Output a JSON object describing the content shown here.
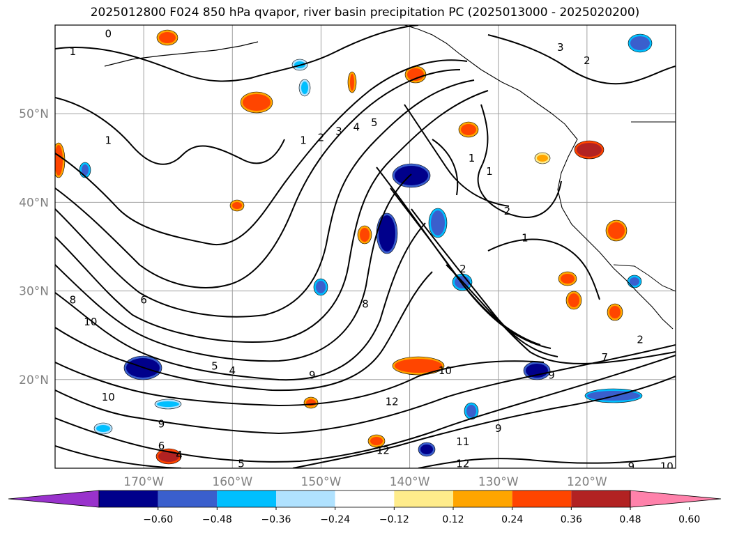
{
  "title": "2025012800 F024 850 hPa qvapor, river basin precipitation PC (2025013000 - 2025020200)",
  "map": {
    "lon_range": [
      -180,
      -110
    ],
    "lat_range": [
      10,
      60
    ],
    "lat_ticks": [
      {
        "value": 20,
        "label": "20°N"
      },
      {
        "value": 30,
        "label": "30°N"
      },
      {
        "value": 40,
        "label": "40°N"
      },
      {
        "value": 50,
        "label": "50°N"
      }
    ],
    "lon_ticks": [
      {
        "value": -170,
        "label": "170°W"
      },
      {
        "value": -160,
        "label": "160°W"
      },
      {
        "value": -150,
        "label": "150°W"
      },
      {
        "value": -140,
        "label": "140°W"
      },
      {
        "value": -130,
        "label": "130°W"
      },
      {
        "value": -120,
        "label": "120°W"
      }
    ],
    "grid": true,
    "contour_labels": [
      {
        "text": "0",
        "lon": -174,
        "lat": 59
      },
      {
        "text": "1",
        "lon": -178,
        "lat": 57
      },
      {
        "text": "1",
        "lon": -174,
        "lat": 47
      },
      {
        "text": "1",
        "lon": -152,
        "lat": 47
      },
      {
        "text": "2",
        "lon": -150,
        "lat": 47.3
      },
      {
        "text": "3",
        "lon": -148,
        "lat": 48
      },
      {
        "text": "4",
        "lon": -146,
        "lat": 48.5
      },
      {
        "text": "5",
        "lon": -144,
        "lat": 49
      },
      {
        "text": "3",
        "lon": -123,
        "lat": 57.5
      },
      {
        "text": "2",
        "lon": -120,
        "lat": 56
      },
      {
        "text": "1",
        "lon": -133,
        "lat": 45
      },
      {
        "text": "1",
        "lon": -131,
        "lat": 43.5
      },
      {
        "text": "2",
        "lon": -129,
        "lat": 39
      },
      {
        "text": "1",
        "lon": -127,
        "lat": 36
      },
      {
        "text": "2",
        "lon": -134,
        "lat": 32.5
      },
      {
        "text": "8",
        "lon": -178,
        "lat": 29
      },
      {
        "text": "6",
        "lon": -170,
        "lat": 29
      },
      {
        "text": "10",
        "lon": -176,
        "lat": 26.5
      },
      {
        "text": "8",
        "lon": -145,
        "lat": 28.5
      },
      {
        "text": "9",
        "lon": -151,
        "lat": 20.5
      },
      {
        "text": "5",
        "lon": -162,
        "lat": 21.5
      },
      {
        "text": "4",
        "lon": -160,
        "lat": 21
      },
      {
        "text": "10",
        "lon": -136,
        "lat": 21
      },
      {
        "text": "9",
        "lon": -124,
        "lat": 20.5
      },
      {
        "text": "10",
        "lon": -174,
        "lat": 18
      },
      {
        "text": "12",
        "lon": -142,
        "lat": 17.5
      },
      {
        "text": "9",
        "lon": -168,
        "lat": 15
      },
      {
        "text": "9",
        "lon": -130,
        "lat": 14.5
      },
      {
        "text": "11",
        "lon": -134,
        "lat": 13
      },
      {
        "text": "12",
        "lon": -143,
        "lat": 12
      },
      {
        "text": "12",
        "lon": -134,
        "lat": 10.5
      },
      {
        "text": "6",
        "lon": -168,
        "lat": 12.5
      },
      {
        "text": "4",
        "lon": -166,
        "lat": 11.5
      },
      {
        "text": "5",
        "lon": -159,
        "lat": 10.5
      },
      {
        "text": "9",
        "lon": -115,
        "lat": 10.2
      },
      {
        "text": "10",
        "lon": -111,
        "lat": 10.2
      },
      {
        "text": "2",
        "lon": -114,
        "lat": 24.5
      },
      {
        "text": "7",
        "lon": -118,
        "lat": 22.5
      }
    ]
  },
  "colorbar": {
    "ticks": [
      "−0.60",
      "−0.48",
      "−0.36",
      "−0.24",
      "−0.12",
      "0.12",
      "0.24",
      "0.36",
      "0.48",
      "0.60"
    ],
    "colors": [
      "#9932cc",
      "#00008b",
      "#3a5fcd",
      "#00bfff",
      "#b0e2ff",
      "#ffffff",
      "#ffec8b",
      "#ffa500",
      "#ff4500",
      "#b22222",
      "#ff82ab"
    ]
  }
}
